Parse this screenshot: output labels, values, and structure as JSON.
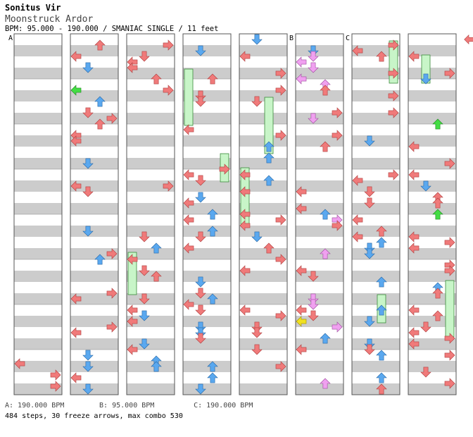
{
  "song": {
    "artist": "Sonitus Vir",
    "title": "Moonstruck Ardor",
    "info": "BPM: 95.000 - 190.000 / SMANIAC SINGLE / 11 feet"
  },
  "section_markers": [
    "A",
    "B",
    "C"
  ],
  "bpm_legend": [
    {
      "label": "A: 190.000 BPM"
    },
    {
      "label": "B: 95.000 BPM"
    },
    {
      "label": "C: 190.000 BPM"
    }
  ],
  "stats": "484 steps, 30 freeze arrows, max combo 530",
  "colors": {
    "stripe": "#cccccc",
    "blue_arrow": "#5aa8ef",
    "red_arrow": "#f07a7a",
    "pink_arrow": "#f0a0f0",
    "green_arrow": "#44dd44",
    "yellow_arrow": "#f0e020",
    "freeze_fill": "#c8f5c8",
    "freeze_border": "#3a8a3a"
  },
  "icons": [
    "left-arrow-icon",
    "down-arrow-icon",
    "up-arrow-icon",
    "right-arrow-icon",
    "freeze-arrow-icon"
  ]
}
